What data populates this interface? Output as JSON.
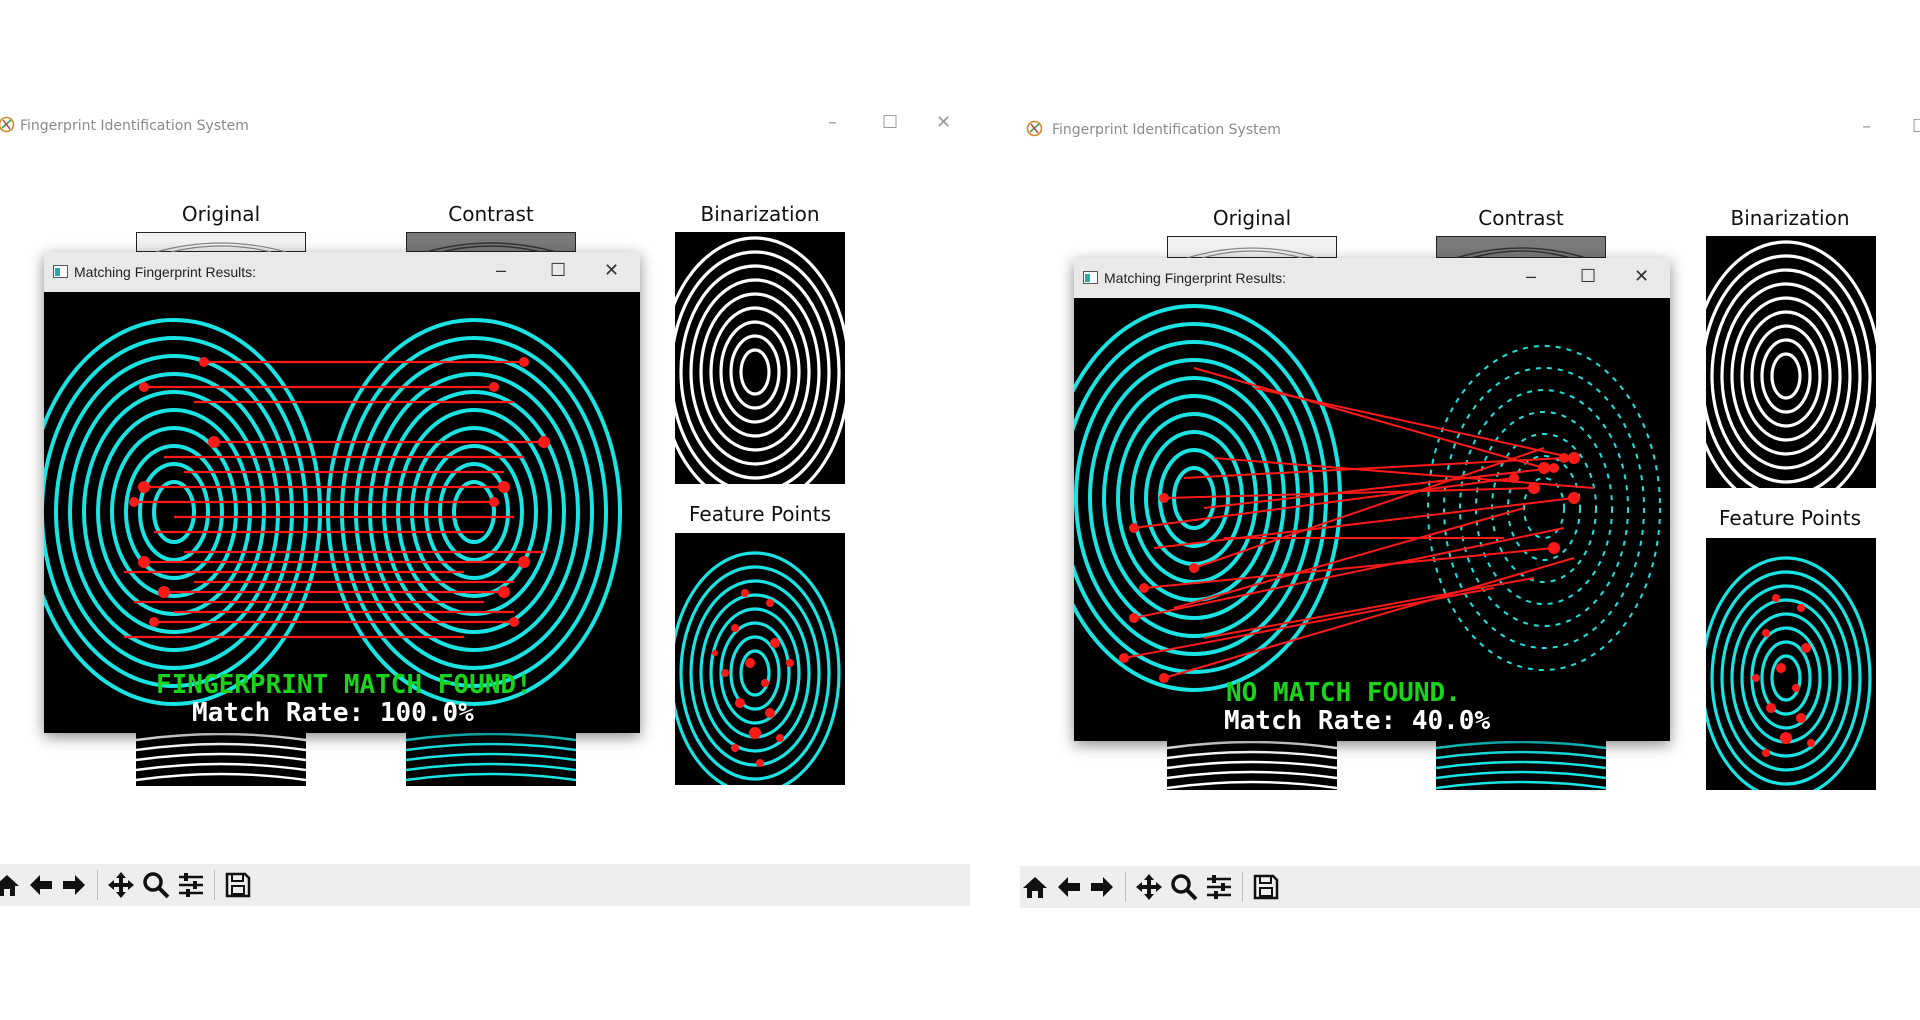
{
  "windows": [
    {
      "title": "Fingerprint Identification System",
      "labels": {
        "original": "Original",
        "contrast": "Contrast",
        "binarization": "Binarization",
        "feature_points": "Feature Points"
      },
      "dialog": {
        "title": "Matching Fingerprint Results:",
        "result_text": "FINGERPRINT MATCH FOUND!",
        "match_rate": "Match Rate: 100.0%"
      },
      "toolbar": [
        "home-icon",
        "back-icon",
        "forward-icon",
        "pan-icon",
        "zoom-icon",
        "configure-subplots-icon",
        "save-icon"
      ]
    },
    {
      "title": "Fingerprint Identification System",
      "labels": {
        "original": "Original",
        "contrast": "Contrast",
        "binarization": "Binarization",
        "feature_points": "Feature Points"
      },
      "dialog": {
        "title": "Matching Fingerprint Results:",
        "result_text": "NO MATCH FOUND.",
        "match_rate": "Match Rate: 40.0%"
      },
      "toolbar": [
        "home-icon",
        "back-icon",
        "forward-icon",
        "pan-icon",
        "zoom-icon",
        "configure-subplots-icon",
        "save-icon"
      ]
    }
  ],
  "colors": {
    "ridge": "#19e3e3",
    "match_line": "#ff1a1a",
    "match_found": "#19d419",
    "rate_text": "#ffffff",
    "toolbar_bg": "#eeeeee"
  }
}
